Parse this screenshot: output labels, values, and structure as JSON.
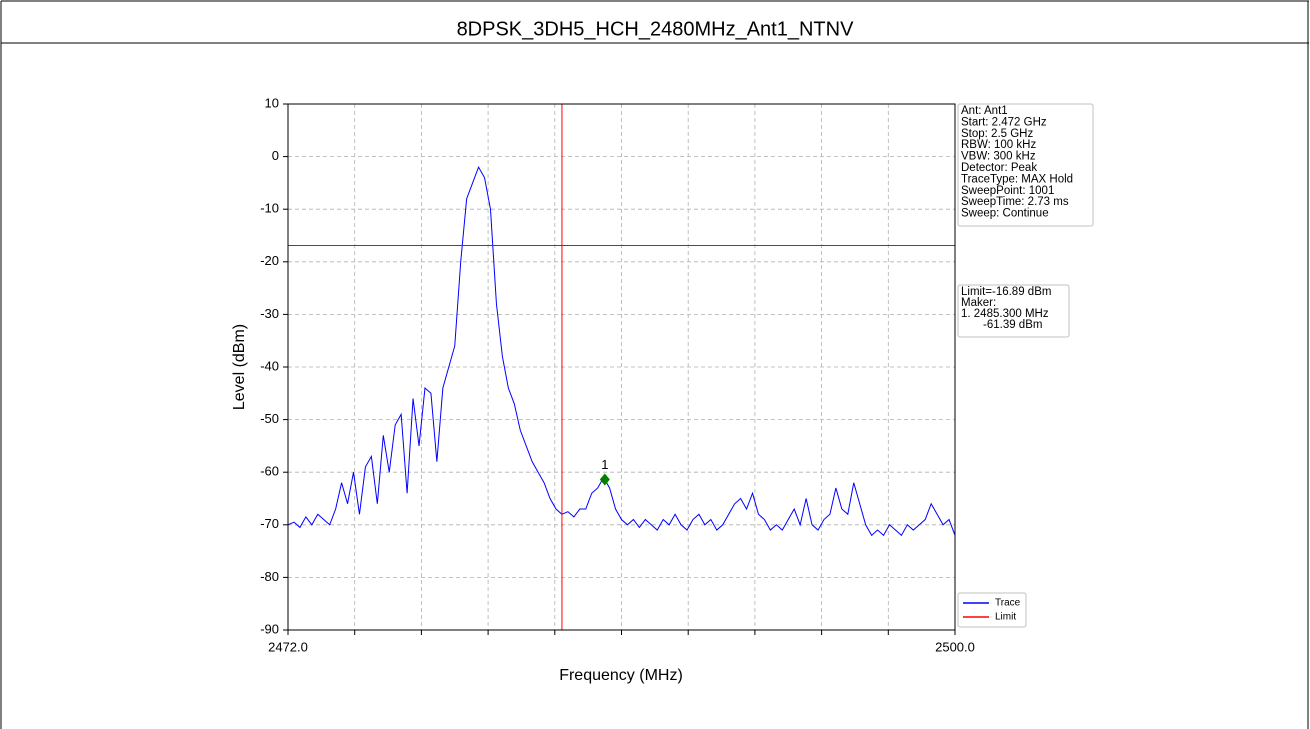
{
  "chart_data": {
    "type": "line",
    "title": "8DPSK_3DH5_HCH_2480MHz_Ant1_NTNV",
    "xlabel": "Frequency (MHz)",
    "ylabel": "Level (dBm)",
    "xlim": [
      2472,
      2500
    ],
    "ylim": [
      -90,
      10
    ],
    "xticks": [
      {
        "value": 2472,
        "label": "2472.0"
      },
      {
        "value": 2500,
        "label": "2500.0"
      }
    ],
    "xminor_ticks": [
      2474.8,
      2477.6,
      2480.4,
      2483.2,
      2486,
      2488.8,
      2491.6,
      2494.4,
      2497.2
    ],
    "yticks": [
      10,
      0,
      -10,
      -20,
      -30,
      -40,
      -50,
      -60,
      -70,
      -80,
      -90
    ],
    "grid": true,
    "series": [
      {
        "name": "Trace",
        "color": "#0000ff",
        "x": [
          2472,
          2472.25,
          2472.5,
          2472.75,
          2473,
          2473.25,
          2473.5,
          2473.75,
          2474,
          2474.25,
          2474.5,
          2474.75,
          2475,
          2475.25,
          2475.5,
          2475.75,
          2476,
          2476.25,
          2476.5,
          2476.75,
          2477,
          2477.25,
          2477.5,
          2477.75,
          2478,
          2478.25,
          2478.5,
          2478.75,
          2479,
          2479.25,
          2479.5,
          2479.75,
          2480,
          2480.25,
          2480.5,
          2480.75,
          2481,
          2481.25,
          2481.5,
          2481.75,
          2482,
          2482.25,
          2482.5,
          2482.75,
          2483,
          2483.25,
          2483.5,
          2483.75,
          2484,
          2484.25,
          2484.5,
          2484.75,
          2485,
          2485.25,
          2485.5,
          2485.75,
          2486,
          2486.25,
          2486.5,
          2486.75,
          2487,
          2487.25,
          2487.5,
          2487.75,
          2488,
          2488.25,
          2488.5,
          2488.75,
          2489,
          2489.25,
          2489.5,
          2489.75,
          2490,
          2490.25,
          2490.5,
          2490.75,
          2491,
          2491.25,
          2491.5,
          2491.75,
          2492,
          2492.25,
          2492.5,
          2492.75,
          2493,
          2493.25,
          2493.5,
          2493.75,
          2494,
          2494.25,
          2494.5,
          2494.75,
          2495,
          2495.25,
          2495.5,
          2495.75,
          2496,
          2496.25,
          2496.5,
          2496.75,
          2497,
          2497.25,
          2497.5,
          2497.75,
          2498,
          2498.25,
          2498.5,
          2498.75,
          2499,
          2499.25,
          2499.5,
          2499.75,
          2500
        ],
        "values": [
          -70,
          -69.5,
          -70.5,
          -68.5,
          -70,
          -68,
          -69,
          -70,
          -67,
          -62,
          -66,
          -60,
          -68,
          -59,
          -57,
          -66,
          -53,
          -60,
          -51,
          -49,
          -64,
          -46,
          -55,
          -44,
          -45,
          -58,
          -44,
          -40,
          -36,
          -20,
          -8,
          -5,
          -2,
          -4,
          -10,
          -28,
          -38,
          -44,
          -47,
          -52,
          -55,
          -58,
          -60,
          -62,
          -65,
          -67,
          -68,
          -67.5,
          -68.5,
          -67,
          -67,
          -64,
          -63,
          -61,
          -63,
          -67,
          -69,
          -70,
          -69,
          -70.5,
          -69,
          -70,
          -71,
          -69,
          -70,
          -68,
          -70,
          -71,
          -69,
          -68,
          -70,
          -69,
          -71,
          -70,
          -68,
          -66,
          -65,
          -67,
          -64,
          -68,
          -69,
          -71,
          -70,
          -71,
          -69,
          -67,
          -70,
          -65,
          -70,
          -71,
          -69,
          -68,
          -63,
          -67,
          -68,
          -62,
          -66,
          -70,
          -72,
          -71,
          -72,
          -70,
          -71,
          -72,
          -70,
          -71,
          -70,
          -69,
          -66,
          -68,
          -70,
          -69,
          -72
        ]
      }
    ],
    "limit": {
      "name": "Limit",
      "color": "#ff0000",
      "value": -16.89
    },
    "band_edge": {
      "x": 2483.5,
      "color": "#ff0000"
    },
    "marker": {
      "label": "1",
      "x": 2485.3,
      "y": -61.39,
      "color": "#008000"
    },
    "info": [
      "Ant: Ant1",
      "Start: 2.472 GHz",
      "Stop: 2.5 GHz",
      "RBW: 100 kHz",
      "VBW: 300 kHz",
      "Detector: Peak",
      "TraceType: MAX Hold",
      "SweepPoint: 1001",
      "SweepTime: 2.73 ms",
      "Sweep: Continue"
    ],
    "marker_info": [
      "Limit=-16.89 dBm",
      "Maker:",
      "1. 2485.300 MHz",
      "-61.39 dBm"
    ]
  }
}
